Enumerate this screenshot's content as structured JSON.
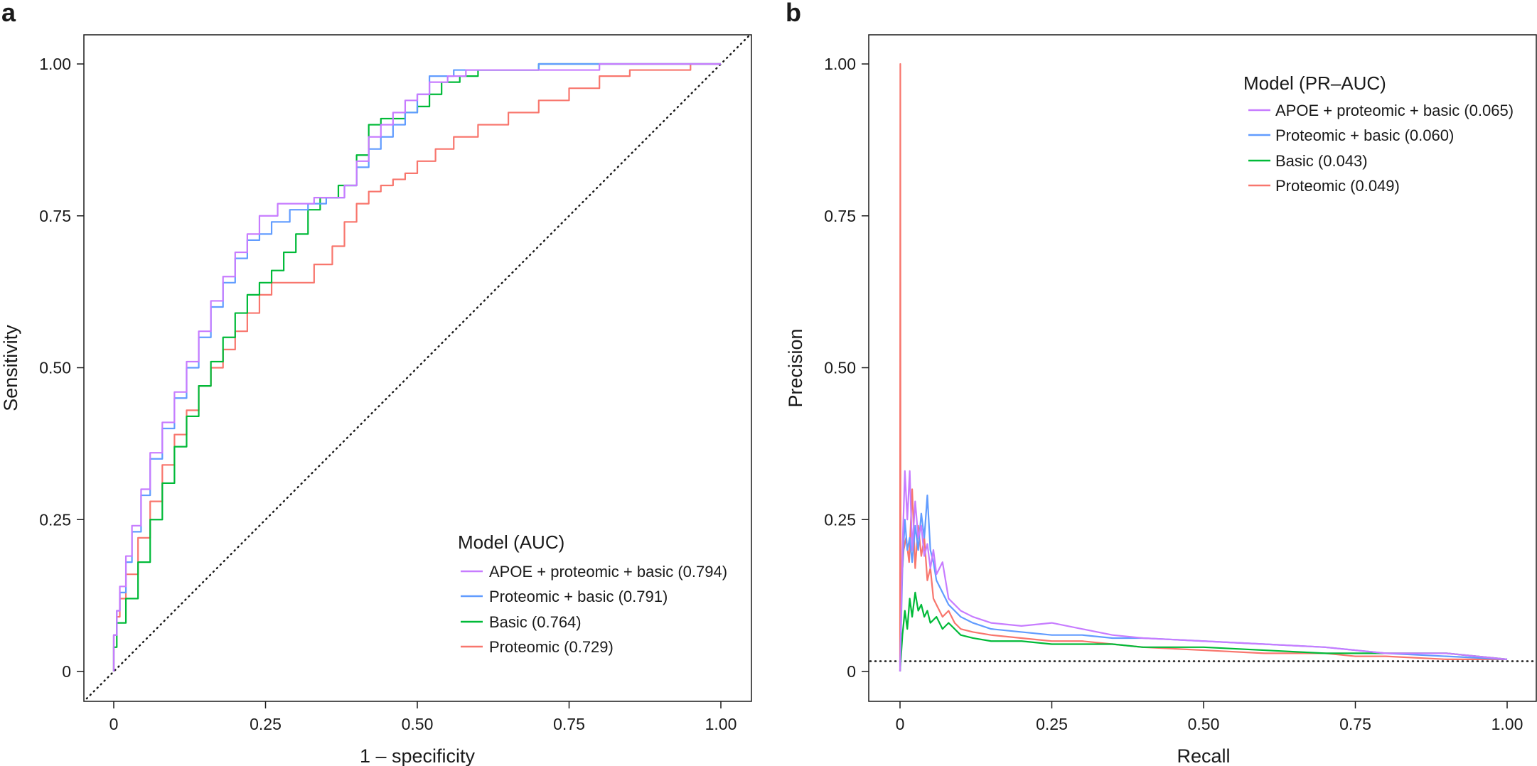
{
  "colors": {
    "apoe": "#c77cff",
    "proteomic_basic": "#619cff",
    "basic": "#00ba38",
    "proteomic": "#f8766d"
  },
  "chart_data": [
    {
      "panel_label": "a",
      "type": "line",
      "xlabel": "1 – specificity",
      "ylabel": "Sensitivity",
      "xlim": [
        0,
        1
      ],
      "ylim": [
        0,
        1
      ],
      "xticks": [
        "0",
        "0.25",
        "0.50",
        "0.75",
        "1.00"
      ],
      "yticks": [
        "0",
        "0.25",
        "0.50",
        "0.75",
        "1.00"
      ],
      "reference_line": "diagonal",
      "legend_title": "Model (AUC)",
      "legend_position": "bottom-right",
      "series": [
        {
          "name": "APOE + proteomic + basic (0.794)",
          "color_key": "apoe",
          "x": [
            0,
            0.005,
            0.01,
            0.02,
            0.03,
            0.045,
            0.06,
            0.08,
            0.1,
            0.12,
            0.14,
            0.16,
            0.18,
            0.2,
            0.22,
            0.24,
            0.27,
            0.3,
            0.33,
            0.36,
            0.38,
            0.4,
            0.42,
            0.44,
            0.46,
            0.48,
            0.5,
            0.52,
            0.55,
            0.58,
            0.62,
            0.66,
            0.72,
            0.8,
            0.9,
            1.0
          ],
          "y": [
            0,
            0.06,
            0.1,
            0.14,
            0.19,
            0.24,
            0.3,
            0.36,
            0.41,
            0.46,
            0.51,
            0.56,
            0.61,
            0.65,
            0.69,
            0.72,
            0.75,
            0.77,
            0.77,
            0.78,
            0.78,
            0.8,
            0.84,
            0.88,
            0.9,
            0.92,
            0.94,
            0.95,
            0.97,
            0.98,
            0.99,
            0.99,
            0.99,
            0.99,
            1.0,
            1.0
          ]
        },
        {
          "name": "Proteomic + basic (0.791)",
          "color_key": "proteomic_basic",
          "x": [
            0,
            0.005,
            0.01,
            0.02,
            0.03,
            0.045,
            0.06,
            0.08,
            0.1,
            0.12,
            0.14,
            0.16,
            0.18,
            0.2,
            0.22,
            0.24,
            0.26,
            0.29,
            0.32,
            0.35,
            0.38,
            0.4,
            0.42,
            0.44,
            0.46,
            0.48,
            0.5,
            0.52,
            0.56,
            0.6,
            0.65,
            0.7,
            0.8,
            0.9,
            1.0
          ],
          "y": [
            0,
            0.06,
            0.1,
            0.13,
            0.18,
            0.23,
            0.29,
            0.35,
            0.4,
            0.45,
            0.5,
            0.55,
            0.6,
            0.64,
            0.68,
            0.71,
            0.72,
            0.74,
            0.76,
            0.77,
            0.78,
            0.8,
            0.83,
            0.86,
            0.88,
            0.9,
            0.92,
            0.95,
            0.98,
            0.99,
            0.99,
            0.99,
            1.0,
            1.0,
            1.0
          ]
        },
        {
          "name": "Basic (0.764)",
          "color_key": "basic",
          "x": [
            0,
            0.005,
            0.02,
            0.04,
            0.06,
            0.08,
            0.1,
            0.12,
            0.14,
            0.16,
            0.18,
            0.2,
            0.22,
            0.24,
            0.26,
            0.28,
            0.3,
            0.32,
            0.34,
            0.37,
            0.4,
            0.42,
            0.44,
            0.46,
            0.48,
            0.5,
            0.52,
            0.54,
            0.57,
            0.6,
            0.64,
            0.7,
            0.8,
            0.9,
            1.0
          ],
          "y": [
            0,
            0.04,
            0.08,
            0.12,
            0.18,
            0.25,
            0.31,
            0.37,
            0.42,
            0.47,
            0.51,
            0.55,
            0.59,
            0.62,
            0.64,
            0.66,
            0.69,
            0.72,
            0.76,
            0.78,
            0.8,
            0.85,
            0.9,
            0.91,
            0.91,
            0.92,
            0.93,
            0.95,
            0.97,
            0.98,
            0.99,
            0.99,
            1.0,
            1.0,
            1.0
          ]
        },
        {
          "name": "Proteomic (0.729)",
          "color_key": "proteomic",
          "x": [
            0,
            0.005,
            0.01,
            0.02,
            0.04,
            0.06,
            0.08,
            0.1,
            0.12,
            0.14,
            0.16,
            0.18,
            0.2,
            0.22,
            0.24,
            0.26,
            0.28,
            0.3,
            0.33,
            0.36,
            0.38,
            0.4,
            0.42,
            0.44,
            0.46,
            0.48,
            0.5,
            0.53,
            0.56,
            0.6,
            0.65,
            0.7,
            0.75,
            0.8,
            0.85,
            0.9,
            0.95,
            1.0
          ],
          "y": [
            0,
            0.06,
            0.09,
            0.12,
            0.16,
            0.22,
            0.28,
            0.34,
            0.39,
            0.43,
            0.47,
            0.5,
            0.53,
            0.56,
            0.59,
            0.62,
            0.64,
            0.64,
            0.64,
            0.67,
            0.7,
            0.74,
            0.77,
            0.79,
            0.8,
            0.81,
            0.82,
            0.84,
            0.86,
            0.88,
            0.9,
            0.92,
            0.94,
            0.96,
            0.98,
            0.99,
            0.99,
            1.0
          ]
        }
      ]
    },
    {
      "panel_label": "b",
      "type": "line",
      "xlabel": "Recall",
      "ylabel": "Precision",
      "xlim": [
        0,
        1
      ],
      "ylim": [
        0,
        1
      ],
      "xticks": [
        "0",
        "0.25",
        "0.50",
        "0.75",
        "1.00"
      ],
      "yticks": [
        "0",
        "0.25",
        "0.50",
        "0.75",
        "1.00"
      ],
      "reference_line": "horizontal at baseline 0.017",
      "reference_value": 0.017,
      "legend_title": "Model (PR–AUC)",
      "legend_position": "top-right",
      "series": [
        {
          "name": "APOE + proteomic + basic (0.065)",
          "color_key": "apoe",
          "x": [
            0,
            0.004,
            0.008,
            0.012,
            0.016,
            0.02,
            0.025,
            0.03,
            0.035,
            0.04,
            0.045,
            0.05,
            0.055,
            0.06,
            0.07,
            0.08,
            0.09,
            0.1,
            0.12,
            0.15,
            0.2,
            0.25,
            0.3,
            0.35,
            0.4,
            0.5,
            0.6,
            0.7,
            0.75,
            0.8,
            0.9,
            1.0
          ],
          "y": [
            0,
            0.2,
            0.33,
            0.25,
            0.33,
            0.2,
            0.28,
            0.22,
            0.24,
            0.19,
            0.21,
            0.17,
            0.2,
            0.16,
            0.18,
            0.12,
            0.11,
            0.1,
            0.09,
            0.08,
            0.075,
            0.08,
            0.07,
            0.06,
            0.055,
            0.05,
            0.045,
            0.04,
            0.035,
            0.03,
            0.03,
            0.02
          ]
        },
        {
          "name": "Proteomic + basic (0.060)",
          "color_key": "proteomic_basic",
          "x": [
            0,
            0.004,
            0.008,
            0.012,
            0.016,
            0.02,
            0.025,
            0.03,
            0.035,
            0.04,
            0.045,
            0.05,
            0.055,
            0.06,
            0.07,
            0.08,
            0.09,
            0.1,
            0.12,
            0.15,
            0.2,
            0.25,
            0.3,
            0.35,
            0.4,
            0.5,
            0.6,
            0.7,
            0.75,
            0.8,
            0.9,
            1.0
          ],
          "y": [
            0,
            0.17,
            0.25,
            0.2,
            0.22,
            0.18,
            0.24,
            0.2,
            0.26,
            0.22,
            0.29,
            0.2,
            0.18,
            0.15,
            0.13,
            0.11,
            0.1,
            0.09,
            0.08,
            0.07,
            0.065,
            0.06,
            0.06,
            0.055,
            0.055,
            0.05,
            0.045,
            0.04,
            0.035,
            0.03,
            0.025,
            0.02
          ]
        },
        {
          "name": "Basic (0.043)",
          "color_key": "basic",
          "x": [
            0,
            0.004,
            0.008,
            0.012,
            0.016,
            0.02,
            0.025,
            0.03,
            0.035,
            0.04,
            0.045,
            0.05,
            0.06,
            0.07,
            0.08,
            0.1,
            0.12,
            0.15,
            0.2,
            0.25,
            0.3,
            0.35,
            0.4,
            0.5,
            0.6,
            0.7,
            0.75,
            0.8,
            0.9,
            1.0
          ],
          "y": [
            0,
            0.06,
            0.1,
            0.07,
            0.12,
            0.09,
            0.13,
            0.1,
            0.11,
            0.09,
            0.1,
            0.08,
            0.09,
            0.07,
            0.08,
            0.06,
            0.055,
            0.05,
            0.05,
            0.045,
            0.045,
            0.045,
            0.04,
            0.04,
            0.035,
            0.03,
            0.03,
            0.03,
            0.03,
            0.02
          ]
        },
        {
          "name": "Proteomic (0.049)",
          "color_key": "proteomic",
          "x": [
            0,
            0.0005,
            0.001,
            0.002,
            0.006,
            0.01,
            0.015,
            0.02,
            0.025,
            0.03,
            0.035,
            0.04,
            0.045,
            0.05,
            0.055,
            0.06,
            0.07,
            0.08,
            0.09,
            0.1,
            0.12,
            0.15,
            0.2,
            0.25,
            0.3,
            0.35,
            0.4,
            0.5,
            0.6,
            0.7,
            0.75,
            0.8,
            0.9,
            1.0
          ],
          "y": [
            0,
            1.0,
            0.05,
            0.14,
            0.2,
            0.22,
            0.18,
            0.3,
            0.17,
            0.24,
            0.19,
            0.22,
            0.15,
            0.17,
            0.12,
            0.11,
            0.09,
            0.1,
            0.08,
            0.07,
            0.065,
            0.06,
            0.055,
            0.05,
            0.05,
            0.045,
            0.04,
            0.035,
            0.03,
            0.03,
            0.025,
            0.025,
            0.02,
            0.02
          ]
        }
      ]
    }
  ]
}
